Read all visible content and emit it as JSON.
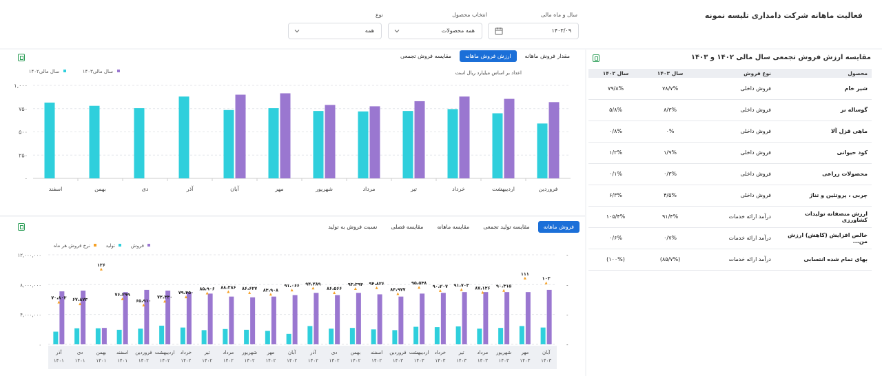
{
  "page": {
    "title": "فعالیت ماهانه شرکت دامداری تلیسه نمونه"
  },
  "filters": {
    "year_month": {
      "label": "سال و ماه مالی",
      "value": "۱۴۰۳/۰۹"
    },
    "product": {
      "label": "انتخاب محصول",
      "value": "همه محصولات"
    },
    "type": {
      "label": "نوع",
      "value": "همه"
    }
  },
  "table_panel": {
    "title": "مقایسه ارزش فروش تجمعی سال مالی ۱۴۰۲ و ۱۴۰۳",
    "columns": [
      "محصول",
      "نوع فروش",
      "سال ۱۴۰۳",
      "سال ۱۴۰۲"
    ],
    "rows": [
      [
        "شیر خام",
        "فروش داخلی",
        "۷۸/۷%",
        "۷۹/۸%"
      ],
      [
        "گوساله نر",
        "فروش داخلی",
        "۸/۳%",
        "۵/۸%"
      ],
      [
        "ماهی قزل آلا",
        "فروش داخلی",
        "۰%",
        "۰/۸%"
      ],
      [
        "کود حیوانی",
        "فروش داخلی",
        "۱/۹%",
        "۱/۲%"
      ],
      [
        "محصولات زراعی",
        "فروش داخلی",
        "۰/۳%",
        "۰/۱%"
      ],
      [
        "چربی ، پروتئین و تناژ",
        "فروش داخلی",
        "۴/۵%",
        "۶/۳%"
      ],
      [
        "ارزش منصفانه تولیدات کشاورزی",
        "درآمد ارائه خدمات",
        "۹۱/۴%",
        "۱۰۵/۴%"
      ],
      [
        "خالص افزایش (کاهش) ارزش من...",
        "درآمد ارائه خدمات",
        "۰/۷%",
        "۰/۶%"
      ],
      [
        "بهای تمام شده انتسابی",
        "درآمد ارائه خدمات",
        "(۸۵/۷%)",
        "(۱۰۰%)"
      ]
    ]
  },
  "top_chart_panel": {
    "tabs": [
      "مقدار فروش ماهانه",
      "ارزش فروش ماهانه",
      "مقایسه فروش تجمعی"
    ],
    "active_tab": 1,
    "note": "اعداد بر اساس میلیارد ریال است"
  },
  "bottom_chart_panel": {
    "tabs": [
      "فروش ماهانه",
      "مقایسه تولید تجمعی",
      "مقایسه ماهانه",
      "مقایسه فصلی",
      "نسبت فروش به تولید"
    ],
    "active_tab": 0
  },
  "colors": {
    "teal": "#2fcfdc",
    "purple": "#9a77d0",
    "orange": "#f5a025",
    "accent": "#1b6fd8"
  },
  "chart_data": [
    {
      "type": "bar",
      "categories": [
        "فروردین",
        "اردیبهشت",
        "خرداد",
        "تیر",
        "مرداد",
        "شهریور",
        "مهر",
        "آبان",
        "آذر",
        "دی",
        "بهمن",
        "اسفند"
      ],
      "series": [
        {
          "name": "سال مالی۱۴۰۲",
          "color": "#2fcfdc",
          "values": [
            590,
            700,
            745,
            725,
            720,
            725,
            755,
            735,
            880,
            755,
            780,
            815
          ]
        },
        {
          "name": "سال مالی۱۴۰۳",
          "color": "#9a77d0",
          "values": [
            820,
            855,
            880,
            830,
            775,
            790,
            915,
            900,
            null,
            null,
            null,
            null
          ]
        }
      ],
      "yticks": [
        "۰",
        "۲۵۰",
        "۵۰۰",
        "۷۵۰",
        "۱,۰۰۰"
      ],
      "ylim": [
        0,
        1000
      ],
      "grid": true,
      "legend": "top-left"
    },
    {
      "type": "bar",
      "categories": [
        [
          "آذر",
          "۱۴۰۱"
        ],
        [
          "دی",
          "۱۴۰۱"
        ],
        [
          "بهمن",
          "۱۴۰۱"
        ],
        [
          "اسفند",
          "۱۴۰۱"
        ],
        [
          "فروردین",
          "۱۴۰۲"
        ],
        [
          "اردیبهشت",
          "۱۴۰۲"
        ],
        [
          "خرداد",
          "۱۴۰۲"
        ],
        [
          "تیر",
          "۱۴۰۲"
        ],
        [
          "مرداد",
          "۱۴۰۲"
        ],
        [
          "شهریور",
          "۱۴۰۲"
        ],
        [
          "مهر",
          "۱۴۰۲"
        ],
        [
          "آبان",
          "۱۴۰۲"
        ],
        [
          "آذر",
          "۱۴۰۲"
        ],
        [
          "دی",
          "۱۴۰۲"
        ],
        [
          "بهمن",
          "۱۴۰۲"
        ],
        [
          "اسفند",
          "۱۴۰۲"
        ],
        [
          "فروردین",
          "۱۴۰۳"
        ],
        [
          "اردیبهشت",
          "۱۴۰۳"
        ],
        [
          "خرداد",
          "۱۴۰۳"
        ],
        [
          "تیر",
          "۱۴۰۳"
        ],
        [
          "مرداد",
          "۱۴۰۳"
        ],
        [
          "شهریور",
          "۱۴۰۳"
        ],
        [
          "مهر",
          "۱۴۰۳"
        ],
        [
          "آبان",
          "۱۴۰۳"
        ]
      ],
      "series": [
        {
          "name": "تولید",
          "color": "#2fcfdc",
          "values": [
            1700000,
            2150000,
            2150000,
            1950000,
            2100000,
            2500000,
            2250000,
            1900000,
            2050000,
            1950000,
            1800000,
            1400000,
            2450000,
            2100000,
            2200000,
            2000000,
            1900000,
            2350000,
            2300000,
            2400000,
            2100000,
            2200000,
            2450000,
            2250000
          ]
        },
        {
          "name": "فروش",
          "color": "#9a77d0",
          "values": [
            7100000,
            7200000,
            2200000,
            7000000,
            7300000,
            7200000,
            7000000,
            6800000,
            6400000,
            6300000,
            6400000,
            6600000,
            6900000,
            6600000,
            6900000,
            6700000,
            6400000,
            6800000,
            6900000,
            7000000,
            7000000,
            7000000,
            7000000,
            7300000
          ]
        },
        {
          "name": "نرخ فروش هر ماه",
          "color": "#f5a025",
          "values": [
            70.803,
            67.873,
            126,
            76.299,
            65.91,
            72.33,
            79.45,
            85.906,
            88.286,
            86.627,
            83.908,
            91.066,
            94.289,
            86.566,
            93.394,
            94.826,
            84.977,
            95.548,
            90.207,
            91.703,
            87.126,
            90.315,
            111,
            103
          ]
        }
      ],
      "ylabels": [
        "۰",
        "۴,۰۰۰,۰۰۰",
        "۸,۰۰۰,۰۰۰",
        "۱۲,۰۰۰,۰۰۰"
      ],
      "point_labels": [
        "۷۰،۸۰۳",
        "۶۷،۸۷۳",
        "۱۲۶",
        "۷۶،۲۹۹",
        "۶۵،۹۱۰",
        "۷۲،۳۳۰",
        "۷۹،۴۵۰",
        "۸۵،۹۰۶",
        "۸۸،۲۸۶",
        "۸۶،۶۲۷",
        "۸۳،۹۰۸",
        "۹۱،۰۶۶",
        "۹۴،۲۸۹",
        "۸۶،۵۶۶",
        "۹۳،۳۹۴",
        "۹۴،۸۲۶",
        "۸۴،۹۷۷",
        "۹۵،۵۴۸",
        "۹۰،۲۰۷",
        "۹۱،۷۰۳",
        "۸۷،۱۲۶",
        "۹۰،۳۱۵",
        "۱۱۱",
        "۱۰۳"
      ],
      "ylim": [
        0,
        12000000
      ],
      "grid": true,
      "legend": "top-left"
    }
  ]
}
